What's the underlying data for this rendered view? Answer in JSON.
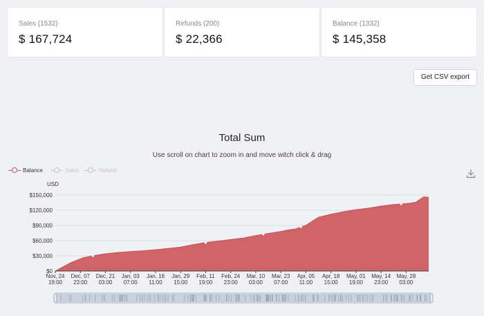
{
  "cards": [
    {
      "label": "Sales (1532)",
      "value": "$ 167,724"
    },
    {
      "label": "Refunds (200)",
      "value": "$ 22,366"
    },
    {
      "label": "Balance (1332)",
      "value": "$ 145,358"
    }
  ],
  "export_label": "Get CSV export",
  "icons": {
    "download": "download-icon"
  },
  "colors": {
    "balance": "#c9565a",
    "fill": "#d06468",
    "inactive": "#c4c4c4"
  },
  "chart_data": {
    "type": "area",
    "title": "Total Sum",
    "subtitle": "Use scroll on chart to zoom in and move witch click & drag",
    "yunit": "USD",
    "legend": [
      {
        "name": "Balance",
        "active": true
      },
      {
        "name": "Sales",
        "active": false
      },
      {
        "name": "Refund",
        "active": false
      }
    ],
    "y_ticks": [
      "$0",
      "$30,000",
      "$60,000",
      "$90,000",
      "$120,000",
      "$150,000"
    ],
    "ylim": [
      0,
      150000
    ],
    "x_ticks": [
      [
        "Nov, 24",
        "19:00"
      ],
      [
        "Dec, 07",
        "23:00"
      ],
      [
        "Dec, 21",
        "03:00"
      ],
      [
        "Jan, 03",
        "07:00"
      ],
      [
        "Jan, 16",
        "11:00"
      ],
      [
        "Jan, 29",
        "15:00"
      ],
      [
        "Feb, 11",
        "19:00"
      ],
      [
        "Feb, 24",
        "23:00"
      ],
      [
        "Mar, 10",
        "03:00"
      ],
      [
        "Mar, 23",
        "07:00"
      ],
      [
        "Apr, 05",
        "11:00"
      ],
      [
        "Apr, 18",
        "15:00"
      ],
      [
        "May, 01",
        "19:00"
      ],
      [
        "May, 14",
        "23:00"
      ],
      [
        "May, 28",
        "03:00"
      ]
    ],
    "series": [
      {
        "name": "Balance",
        "x": [
          0,
          0.3,
          0.6,
          0.9,
          1.1,
          1.4,
          1.6,
          2,
          2.5,
          3,
          3.5,
          4,
          4.5,
          5,
          5.5,
          6,
          6.5,
          7,
          7.5,
          8,
          8.5,
          9,
          9.3,
          9.6,
          9.8,
          10,
          10.5,
          11,
          11.5,
          12,
          12.5,
          13,
          13.5,
          14,
          14.2,
          14.4,
          14.7,
          14.9
        ],
        "y": [
          0,
          8000,
          16000,
          22000,
          26000,
          29000,
          31000,
          34000,
          36500,
          38500,
          40000,
          42000,
          44500,
          47000,
          52000,
          56000,
          59000,
          62000,
          65000,
          70000,
          74000,
          78000,
          81000,
          83000,
          87000,
          90000,
          106000,
          112000,
          117000,
          121000,
          124000,
          128000,
          131000,
          133000,
          134000,
          136000,
          146000,
          145358
        ]
      }
    ]
  }
}
